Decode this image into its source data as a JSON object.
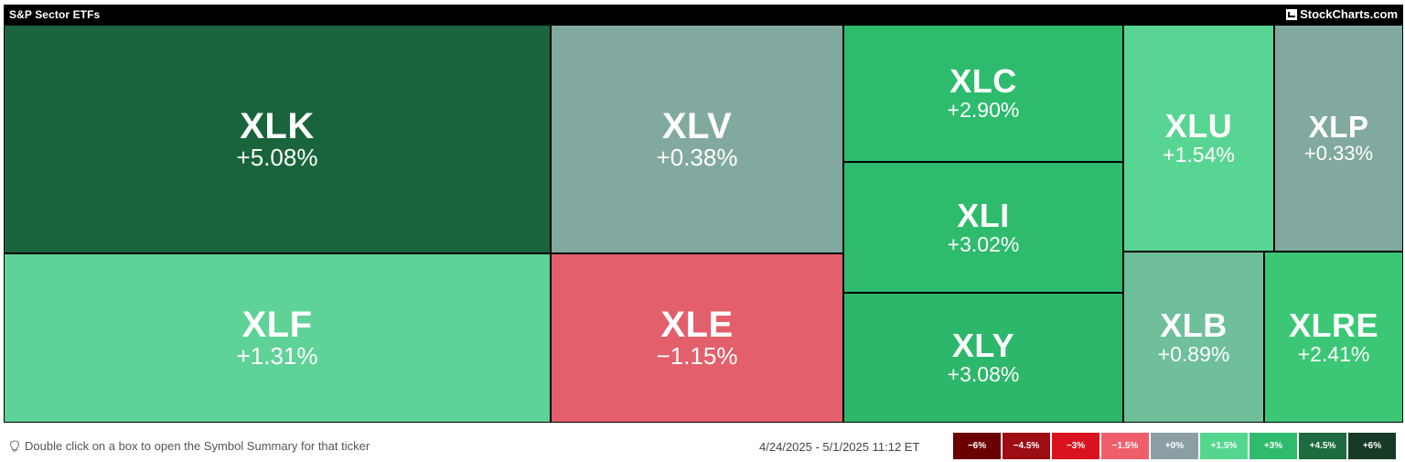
{
  "header": {
    "title": "S&P Sector ETFs",
    "brand": "StockCharts.com"
  },
  "chart_data": {
    "type": "heatmap",
    "title": "S&P Sector ETFs",
    "tiles": [
      {
        "ticker": "XLK",
        "change": "+5.08%",
        "value": 5.08,
        "color": "#19643c"
      },
      {
        "ticker": "XLV",
        "change": "+0.38%",
        "value": 0.38,
        "color": "#82a99f"
      },
      {
        "ticker": "XLC",
        "change": "+2.90%",
        "value": 2.9,
        "color": "#2ebb6d"
      },
      {
        "ticker": "XLI",
        "change": "+3.02%",
        "value": 3.02,
        "color": "#2ebb6d"
      },
      {
        "ticker": "XLY",
        "change": "+3.08%",
        "value": 3.08,
        "color": "#2db76a"
      },
      {
        "ticker": "XLU",
        "change": "+1.54%",
        "value": 1.54,
        "color": "#58d593"
      },
      {
        "ticker": "XLP",
        "change": "+0.33%",
        "value": 0.33,
        "color": "#82a99f"
      },
      {
        "ticker": "XLF",
        "change": "+1.31%",
        "value": 1.31,
        "color": "#5fd297"
      },
      {
        "ticker": "XLE",
        "change": "−1.15%",
        "value": -1.15,
        "color": "#e35f6b"
      },
      {
        "ticker": "XLB",
        "change": "+0.89%",
        "value": 0.89,
        "color": "#6fbf9a"
      },
      {
        "ticker": "XLRE",
        "change": "+2.41%",
        "value": 2.41,
        "color": "#3cc777"
      }
    ],
    "legend": [
      {
        "label": "−6%",
        "color": "#6b0000"
      },
      {
        "label": "−4.5%",
        "color": "#9c0d14"
      },
      {
        "label": "−3%",
        "color": "#d9121f"
      },
      {
        "label": "−1.5%",
        "color": "#ef5f6b"
      },
      {
        "label": "+0%",
        "color": "#8b9ea3"
      },
      {
        "label": "+1.5%",
        "color": "#54d68f"
      },
      {
        "label": "+3%",
        "color": "#2ebb6d"
      },
      {
        "label": "+4.5%",
        "color": "#1e6b3f"
      },
      {
        "label": "+6%",
        "color": "#173a26"
      }
    ]
  },
  "footer": {
    "hint": "Double click on a box to open the Symbol Summary for that ticker",
    "hint_icon": "lightbulb-icon",
    "date_range": "4/24/2025 - 5/1/2025 11:12 ET"
  }
}
